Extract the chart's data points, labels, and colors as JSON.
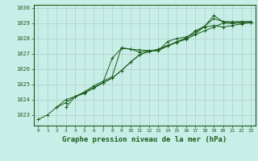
{
  "title": "Graphe pression niveau de la mer (hPa)",
  "background_color": "#c8eee8",
  "grid_color": "#b0ccc8",
  "line_color": "#1a5c1a",
  "x_labels": [
    "0",
    "1",
    "2",
    "3",
    "4",
    "5",
    "6",
    "7",
    "8",
    "9",
    "10",
    "11",
    "12",
    "13",
    "14",
    "15",
    "16",
    "17",
    "18",
    "19",
    "20",
    "21",
    "22",
    "23"
  ],
  "ylim": [
    1022.3,
    1030.2
  ],
  "yticks": [
    1023,
    1024,
    1025,
    1026,
    1027,
    1028,
    1029,
    1030
  ],
  "series": [
    [
      1022.7,
      1023.0,
      1023.5,
      1023.8,
      1024.2,
      1024.4,
      1024.8,
      1025.1,
      1026.7,
      1027.35,
      1027.3,
      1027.25,
      1027.2,
      1027.2,
      1027.8,
      1028.0,
      1028.1,
      1028.3,
      1028.8,
      1029.5,
      1029.1,
      1029.0,
      1029.1,
      1029.1
    ],
    [
      null,
      null,
      1023.5,
      1024.0,
      1024.2,
      1024.5,
      1024.9,
      1025.2,
      1025.5,
      1027.4,
      1027.3,
      1027.1,
      1027.2,
      1027.2,
      1027.5,
      1027.8,
      1028.0,
      1028.5,
      1028.8,
      1029.3,
      1029.1,
      1029.1,
      1029.1,
      1029.1
    ],
    [
      null,
      null,
      null,
      1023.5,
      1024.2,
      1024.45,
      1024.75,
      1025.1,
      1025.4,
      1025.9,
      1026.45,
      1026.95,
      1027.15,
      1027.3,
      1027.5,
      1027.75,
      1027.95,
      1028.25,
      1028.5,
      1028.75,
      1029.0,
      1029.0,
      1029.0,
      1029.05
    ],
    [
      null,
      null,
      null,
      null,
      1024.2,
      1024.45,
      1024.75,
      1025.1,
      1025.4,
      1025.9,
      1026.45,
      1026.95,
      1027.15,
      1027.3,
      1027.55,
      1027.75,
      1028.05,
      1028.45,
      1028.75,
      1028.85,
      1028.75,
      1028.85,
      1028.95,
      1029.05
    ]
  ]
}
